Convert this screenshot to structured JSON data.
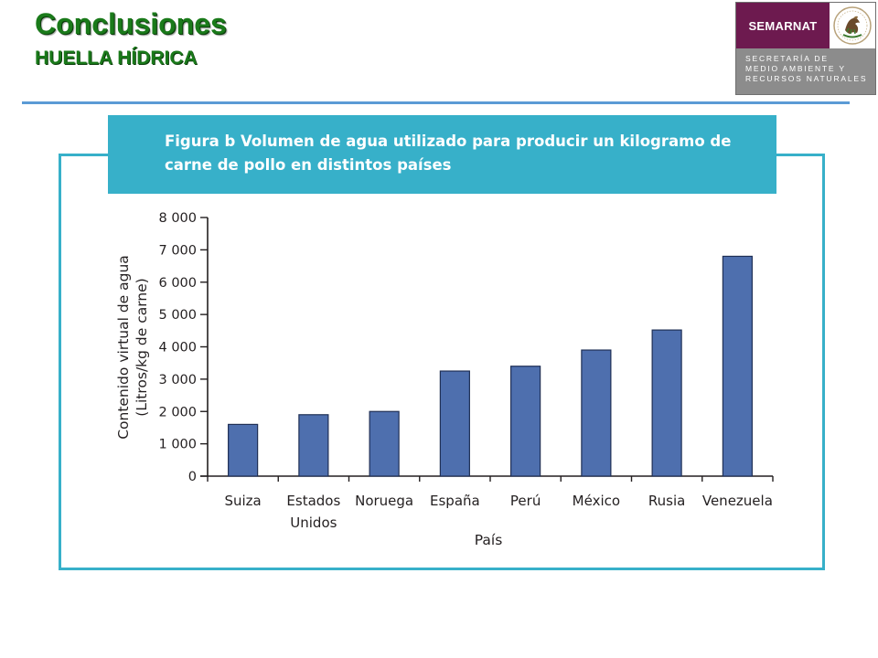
{
  "slide": {
    "title": "Conclusiones",
    "subtitle": "HUELLA HÍDRICA"
  },
  "logo": {
    "name": "SEMARNAT",
    "lines": [
      "SECRETARÍA DE",
      "MEDIO AMBIENTE Y",
      "RECURSOS NATURALES"
    ],
    "seal_icon": "mexican-coat-of-arms-icon",
    "colors": {
      "brand": "#6d1a4f",
      "panel": "#8c8c8c"
    }
  },
  "colors": {
    "title_green": "#1a7a1a",
    "accent_teal": "#37b0c9",
    "bar_blue": "#4e6fae",
    "divider_blue": "#5b9bd5"
  },
  "chart_data": {
    "type": "bar",
    "title": "Figura b Volumen de agua utilizado para producir un kilogramo de carne de pollo en distintos países",
    "title_lines": [
      "Figura b Volumen de agua utilizado para producir un kilogramo de",
      "carne de pollo en distintos países"
    ],
    "xlabel": "País",
    "ylabel_lines": [
      "Contenido virtual de agua",
      "(Litros/kg de carne)"
    ],
    "categories": [
      "Suiza",
      "Estados Unidos",
      "Noruega",
      "España",
      "Perú",
      "México",
      "Rusia",
      "Venezuela"
    ],
    "category_lines": [
      [
        "Suiza"
      ],
      [
        "Estados",
        "Unidos"
      ],
      [
        "Noruega"
      ],
      [
        "España"
      ],
      [
        "Perú"
      ],
      [
        "México"
      ],
      [
        "Rusia"
      ],
      [
        "Venezuela"
      ]
    ],
    "values": [
      1600,
      1900,
      2000,
      3250,
      3400,
      3900,
      4520,
      6800
    ],
    "ylim": [
      0,
      8000
    ],
    "yticks": [
      0,
      1000,
      2000,
      3000,
      4000,
      5000,
      6000,
      7000,
      8000
    ],
    "ytick_labels": [
      "0",
      "1 000",
      "2 000",
      "3 000",
      "4 000",
      "5 000",
      "6 000",
      "7 000",
      "8 000"
    ],
    "grid": false,
    "legend": "none"
  }
}
